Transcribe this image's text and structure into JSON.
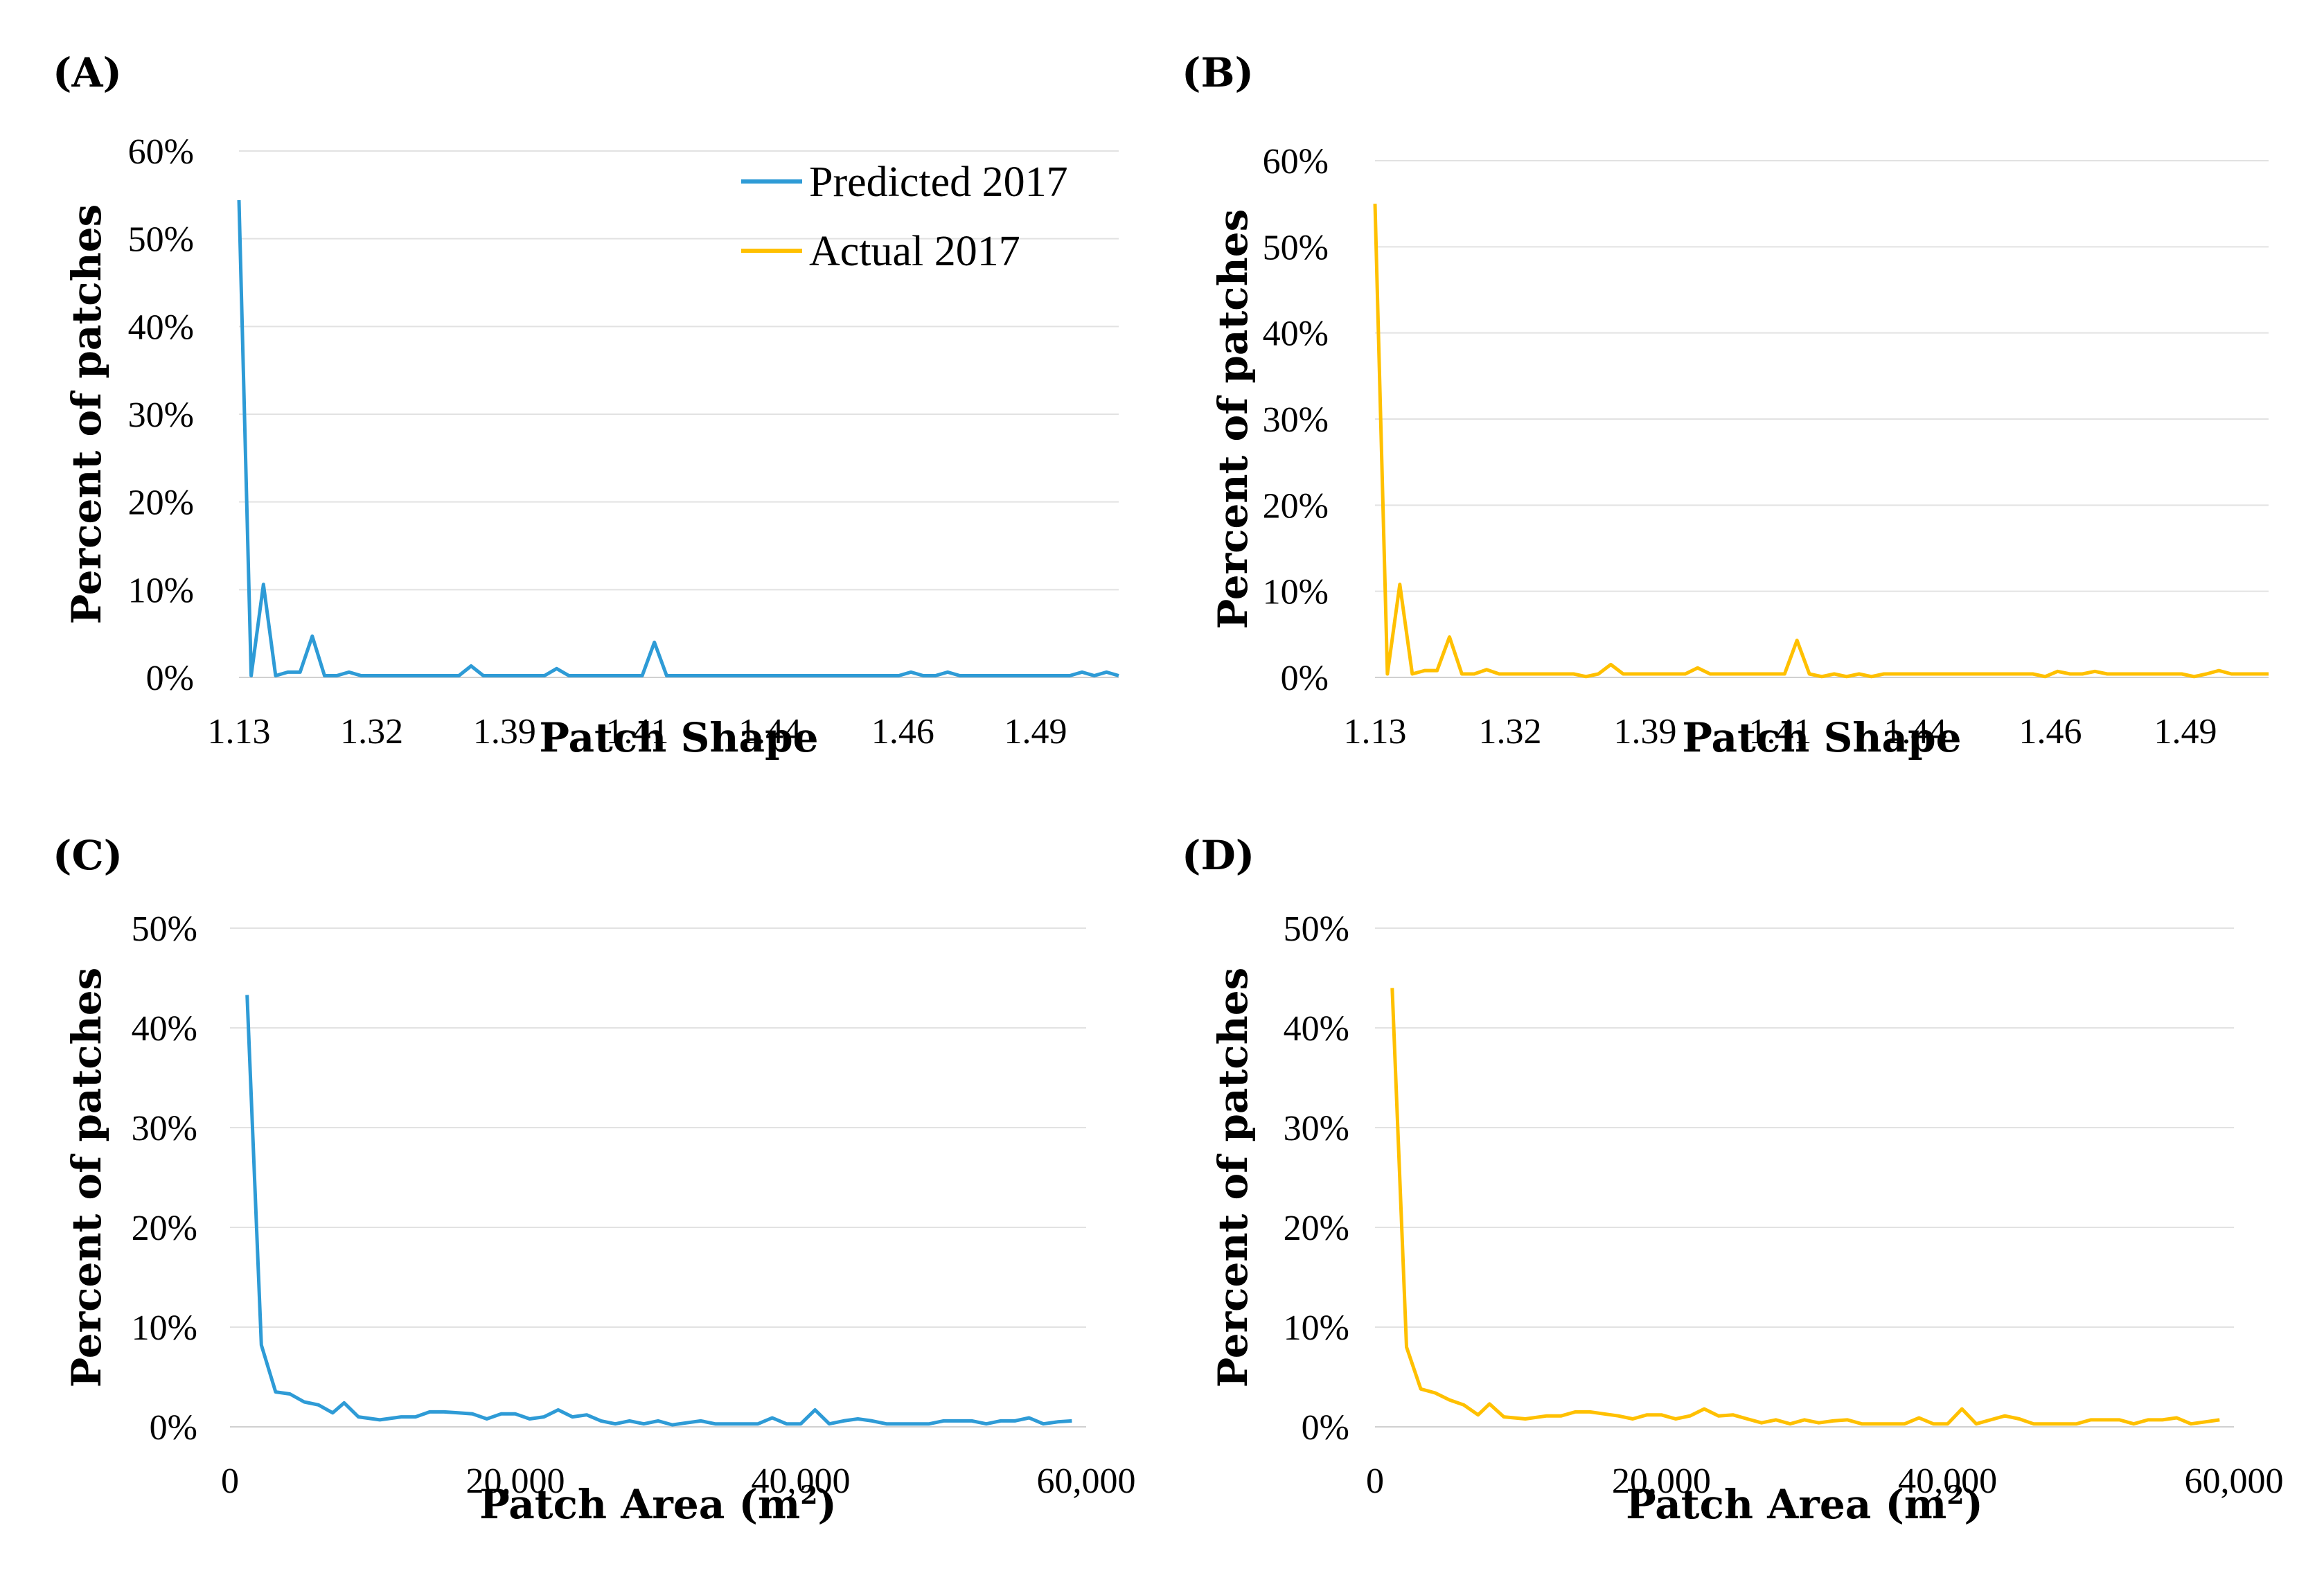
{
  "colors": {
    "predicted": "#2e9bd6",
    "actual": "#ffc000"
  },
  "legend": {
    "predicted": "Predicted 2017",
    "actual": "Actual 2017",
    "position": "top-right of panel A"
  },
  "chart_data": [
    {
      "id": "A",
      "label": "(A)",
      "type": "line",
      "series_name": "Predicted 2017",
      "color_key": "predicted",
      "xlabel": "Patch Shape",
      "ylabel": "Percent of patches",
      "x_tick_labels": [
        "1.13",
        "1.32",
        "1.39",
        "1.41",
        "1.44",
        "1.46",
        "1.49"
      ],
      "y_tick_labels": [
        "0%",
        "10%",
        "20%",
        "30%",
        "40%",
        "50%",
        "60%"
      ],
      "ylim": [
        0,
        60
      ],
      "values": [
        54.4,
        0.2,
        10.6,
        0.2,
        0.6,
        0.6,
        4.7,
        0.2,
        0.2,
        0.6,
        0.2,
        0.2,
        0.2,
        0.2,
        0.2,
        0.2,
        0.2,
        0.2,
        0.2,
        1.3,
        0.2,
        0.2,
        0.2,
        0.2,
        0.2,
        0.2,
        1.0,
        0.2,
        0.2,
        0.2,
        0.2,
        0.2,
        0.2,
        0.2,
        4.0,
        0.2,
        0.2,
        0.2,
        0.2,
        0.2,
        0.2,
        0.2,
        0.2,
        0.2,
        0.2,
        0.2,
        0.2,
        0.2,
        0.2,
        0.2,
        0.2,
        0.2,
        0.2,
        0.2,
        0.2,
        0.6,
        0.2,
        0.2,
        0.6,
        0.2,
        0.2,
        0.2,
        0.2,
        0.2,
        0.2,
        0.2,
        0.2,
        0.2,
        0.2,
        0.6,
        0.2,
        0.6,
        0.2
      ]
    },
    {
      "id": "B",
      "label": "(B)",
      "type": "line",
      "series_name": "Actual 2017",
      "color_key": "actual",
      "xlabel": "Patch Shape",
      "ylabel": "Percent of patches",
      "x_tick_labels": [
        "1.13",
        "1.32",
        "1.39",
        "1.41",
        "1.44",
        "1.46",
        "1.49"
      ],
      "y_tick_labels": [
        "0%",
        "10%",
        "20%",
        "30%",
        "40%",
        "50%",
        "60%"
      ],
      "ylim": [
        0,
        60
      ],
      "values": [
        55.0,
        0.4,
        10.8,
        0.4,
        0.8,
        0.8,
        4.7,
        0.4,
        0.4,
        0.9,
        0.4,
        0.4,
        0.4,
        0.4,
        0.4,
        0.4,
        0.4,
        0.1,
        0.4,
        1.5,
        0.4,
        0.4,
        0.4,
        0.4,
        0.4,
        0.4,
        1.1,
        0.4,
        0.4,
        0.4,
        0.4,
        0.4,
        0.4,
        0.4,
        4.3,
        0.4,
        0.1,
        0.4,
        0.1,
        0.4,
        0.1,
        0.4,
        0.4,
        0.4,
        0.4,
        0.4,
        0.4,
        0.4,
        0.4,
        0.4,
        0.4,
        0.4,
        0.4,
        0.4,
        0.1,
        0.7,
        0.4,
        0.4,
        0.7,
        0.4,
        0.4,
        0.4,
        0.4,
        0.4,
        0.4,
        0.4,
        0.1,
        0.4,
        0.8,
        0.4,
        0.4,
        0.4,
        0.4
      ]
    },
    {
      "id": "C",
      "label": "(C)",
      "type": "line",
      "series_name": "Predicted 2017",
      "color_key": "predicted",
      "xlabel": "Patch Area (m",
      "xlabel_sup": "2",
      "xlabel_end": ")",
      "ylabel": "Percent of patches",
      "x_tick_labels": [
        "0",
        "20,000",
        "40,000",
        "60,000"
      ],
      "xlim": [
        0,
        60000
      ],
      "x_tick_values": [
        0,
        20000,
        40000,
        60000
      ],
      "y_tick_labels": [
        "0%",
        "10%",
        "20%",
        "30%",
        "40%",
        "50%"
      ],
      "ylim": [
        0,
        50
      ],
      "x": [
        1200,
        2200,
        3200,
        4200,
        5200,
        6200,
        7200,
        8000,
        9000,
        10500,
        12000,
        13000,
        14000,
        15000,
        16000,
        17000,
        18000,
        19000,
        20000,
        21000,
        22000,
        23000,
        24000,
        25000,
        26000,
        27000,
        28000,
        29000,
        30000,
        31000,
        32000,
        33000,
        34000,
        35000,
        36000,
        37000,
        38000,
        39000,
        40000,
        41000,
        42000,
        43000,
        44000,
        45000,
        46000,
        47000,
        48000,
        49000,
        50000,
        51000,
        52000,
        53000,
        54000,
        55000,
        56000,
        57000,
        58000,
        59000
      ],
      "values": [
        43.3,
        8.2,
        3.5,
        3.3,
        2.5,
        2.2,
        1.4,
        2.4,
        1.0,
        0.7,
        1.0,
        1.0,
        1.5,
        1.5,
        1.4,
        1.3,
        0.8,
        1.3,
        1.3,
        0.8,
        1.0,
        1.7,
        1.0,
        1.2,
        0.6,
        0.3,
        0.6,
        0.3,
        0.6,
        0.2,
        0.4,
        0.6,
        0.3,
        0.3,
        0.3,
        0.3,
        0.9,
        0.3,
        0.3,
        1.7,
        0.3,
        0.6,
        0.8,
        0.6,
        0.3,
        0.3,
        0.3,
        0.3,
        0.6,
        0.6,
        0.6,
        0.3,
        0.6,
        0.6,
        0.9,
        0.3,
        0.5,
        0.6
      ]
    },
    {
      "id": "D",
      "label": "(D)",
      "type": "line",
      "series_name": "Actual 2017",
      "color_key": "actual",
      "xlabel": "Patch Area (m",
      "xlabel_sup": "2",
      "xlabel_end": ")",
      "ylabel": "Percent of patches",
      "x_tick_labels": [
        "0",
        "20,000",
        "40,000",
        "60,000"
      ],
      "xlim": [
        0,
        60000
      ],
      "x_tick_values": [
        0,
        20000,
        40000,
        60000
      ],
      "y_tick_labels": [
        "0%",
        "10%",
        "20%",
        "30%",
        "40%",
        "50%"
      ],
      "ylim": [
        0,
        50
      ],
      "x": [
        1200,
        2200,
        3200,
        4200,
        5200,
        6200,
        7200,
        8000,
        9000,
        10500,
        12000,
        13000,
        14000,
        15000,
        16000,
        17000,
        18000,
        19000,
        20000,
        21000,
        22000,
        23000,
        24000,
        25000,
        26000,
        27000,
        28000,
        29000,
        30000,
        31000,
        32000,
        33000,
        34000,
        35000,
        36000,
        37000,
        38000,
        39000,
        40000,
        41000,
        42000,
        43000,
        44000,
        45000,
        46000,
        47000,
        48000,
        49000,
        50000,
        51000,
        52000,
        53000,
        54000,
        55000,
        56000,
        57000,
        58000,
        59000
      ],
      "values": [
        44.0,
        8.0,
        3.8,
        3.4,
        2.7,
        2.2,
        1.2,
        2.3,
        1.0,
        0.8,
        1.1,
        1.1,
        1.5,
        1.5,
        1.3,
        1.1,
        0.8,
        1.2,
        1.2,
        0.8,
        1.1,
        1.8,
        1.1,
        1.2,
        0.8,
        0.4,
        0.7,
        0.3,
        0.7,
        0.4,
        0.6,
        0.7,
        0.3,
        0.3,
        0.3,
        0.3,
        0.9,
        0.3,
        0.3,
        1.8,
        0.3,
        0.7,
        1.1,
        0.8,
        0.3,
        0.3,
        0.3,
        0.3,
        0.7,
        0.7,
        0.7,
        0.3,
        0.7,
        0.7,
        0.9,
        0.3,
        0.5,
        0.7
      ]
    }
  ]
}
